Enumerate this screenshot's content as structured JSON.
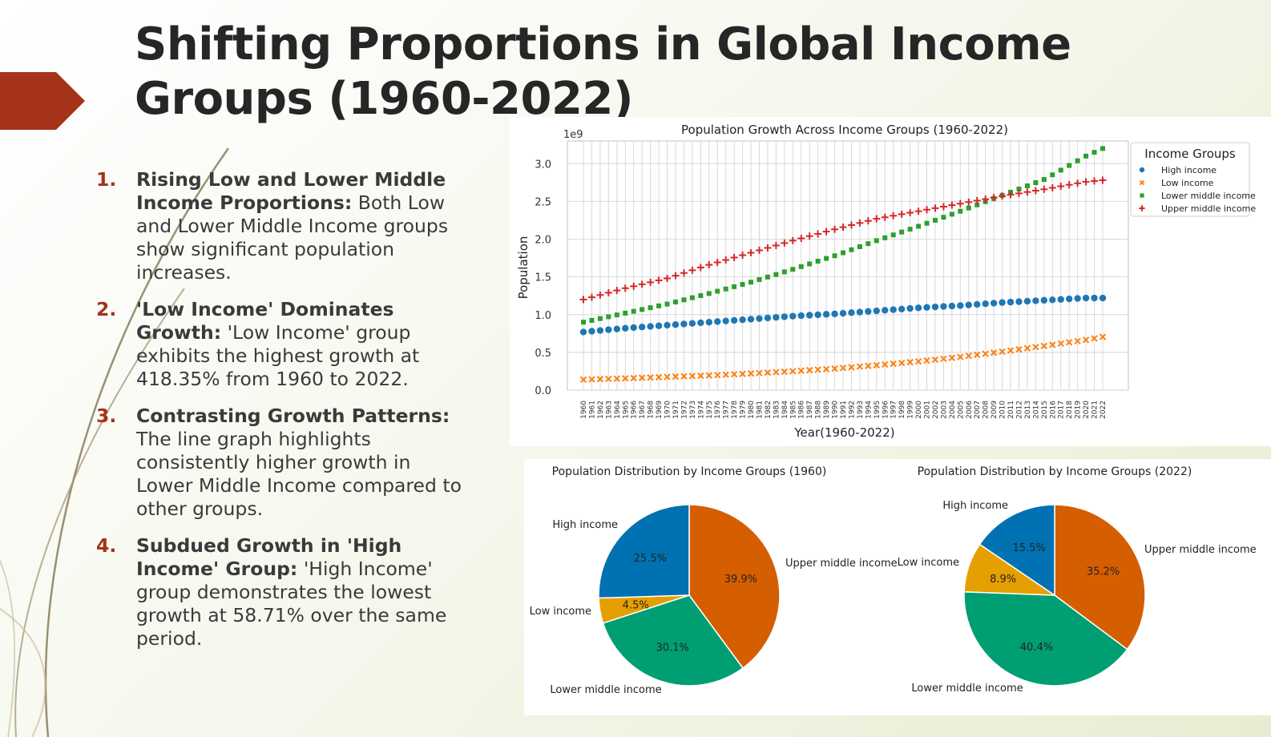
{
  "slide": {
    "title": "Shifting Proportions in Global Income Groups (1960-2022)",
    "accent_color": "#a5321b",
    "points": [
      {
        "num": "1.",
        "head": "Rising Low and Lower Middle Income Proportions:",
        "body": "Both Low and Lower Middle Income groups show significant population increases."
      },
      {
        "num": "2.",
        "head": "'Low Income' Dominates Growth:",
        "body": "'Low Income' group exhibits the highest growth at 418.35% from 1960 to 2022."
      },
      {
        "num": "3.",
        "head": "Contrasting Growth Patterns:",
        "body": "The line graph highlights consistently higher growth in Lower Middle Income compared to other groups."
      },
      {
        "num": "4.",
        "head": "Subdued Growth in 'High Income' Group:",
        "body": "'High Income' group demonstrates the lowest growth at 58.71% over the same period."
      }
    ]
  },
  "chart_data": [
    {
      "type": "scatter",
      "title": "Population Growth Across Income Groups (1960-2022)",
      "xlabel": "Year(1960-2022)",
      "ylabel": "Population",
      "y_multiplier_label": "1e9",
      "x_start": 1960,
      "x_end": 2022,
      "ylim": [
        0,
        3.3
      ],
      "yticks": [
        0.0,
        0.5,
        1.0,
        1.5,
        2.0,
        2.5,
        3.0
      ],
      "grid": true,
      "legend_title": "Income Groups",
      "legend_position": "right",
      "series": [
        {
          "name": "High income",
          "marker": "circle",
          "color": "#1f77b4",
          "points": [
            [
              1960,
              0.77
            ],
            [
              1965,
              0.82
            ],
            [
              1970,
              0.86
            ],
            [
              1975,
              0.9
            ],
            [
              1980,
              0.94
            ],
            [
              1985,
              0.98
            ],
            [
              1990,
              1.01
            ],
            [
              1995,
              1.05
            ],
            [
              2000,
              1.09
            ],
            [
              2005,
              1.12
            ],
            [
              2010,
              1.16
            ],
            [
              2015,
              1.19
            ],
            [
              2020,
              1.22
            ],
            [
              2022,
              1.22
            ]
          ]
        },
        {
          "name": "Low income",
          "marker": "x",
          "color": "#ff7f0e",
          "points": [
            [
              1960,
              0.14
            ],
            [
              1965,
              0.155
            ],
            [
              1970,
              0.175
            ],
            [
              1975,
              0.195
            ],
            [
              1980,
              0.22
            ],
            [
              1985,
              0.25
            ],
            [
              1990,
              0.285
            ],
            [
              1995,
              0.33
            ],
            [
              2000,
              0.38
            ],
            [
              2005,
              0.44
            ],
            [
              2010,
              0.51
            ],
            [
              2015,
              0.585
            ],
            [
              2020,
              0.665
            ],
            [
              2022,
              0.705
            ]
          ]
        },
        {
          "name": "Lower middle income",
          "marker": "square",
          "color": "#2ca02c",
          "points": [
            [
              1960,
              0.9
            ],
            [
              1965,
              1.02
            ],
            [
              1970,
              1.14
            ],
            [
              1975,
              1.28
            ],
            [
              1980,
              1.43
            ],
            [
              1985,
              1.6
            ],
            [
              1990,
              1.78
            ],
            [
              1995,
              1.98
            ],
            [
              2000,
              2.17
            ],
            [
              2005,
              2.37
            ],
            [
              2010,
              2.58
            ],
            [
              2015,
              2.79
            ],
            [
              2020,
              3.1
            ],
            [
              2022,
              3.2
            ]
          ]
        },
        {
          "name": "Upper middle income",
          "marker": "plus",
          "color": "#d62728",
          "points": [
            [
              1960,
              1.2
            ],
            [
              1965,
              1.35
            ],
            [
              1970,
              1.48
            ],
            [
              1975,
              1.66
            ],
            [
              1980,
              1.82
            ],
            [
              1985,
              1.98
            ],
            [
              1990,
              2.13
            ],
            [
              1995,
              2.27
            ],
            [
              2000,
              2.37
            ],
            [
              2005,
              2.47
            ],
            [
              2010,
              2.57
            ],
            [
              2015,
              2.66
            ],
            [
              2020,
              2.76
            ],
            [
              2022,
              2.78
            ]
          ]
        }
      ]
    },
    {
      "type": "pie",
      "title": "Population Distribution by Income Groups (1960)",
      "labels": [
        "Upper middle income",
        "Lower middle income",
        "Low income",
        "High income"
      ],
      "values": [
        39.9,
        30.1,
        4.5,
        25.5
      ],
      "value_labels": [
        "39.9%",
        "30.1%",
        "4.5%",
        "25.5%"
      ],
      "colors": [
        "#d55e00",
        "#009e73",
        "#e69f00",
        "#0072b2"
      ]
    },
    {
      "type": "pie",
      "title": "Population Distribution by Income Groups (2022)",
      "labels": [
        "Upper middle income",
        "Lower middle income",
        "Low income",
        "High income"
      ],
      "values": [
        35.2,
        40.4,
        8.9,
        15.5
      ],
      "value_labels": [
        "35.2%",
        "40.4%",
        "8.9%",
        "15.5%"
      ],
      "colors": [
        "#d55e00",
        "#009e73",
        "#e69f00",
        "#0072b2"
      ]
    }
  ]
}
